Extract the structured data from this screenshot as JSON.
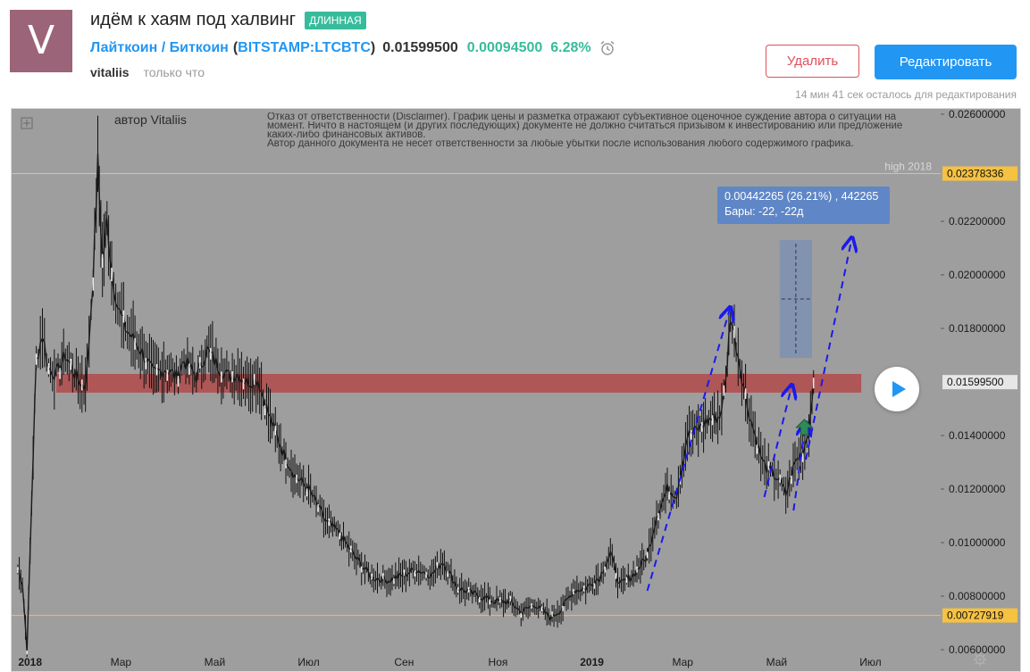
{
  "header": {
    "avatar_letter": "V",
    "title": "идём к хаям под халвинг",
    "badge": "ДЛИННАЯ",
    "symbol_name": "Лайткоин / Биткоин",
    "symbol_paren_open": "(",
    "symbol_ticker": "BITSTAMP:LTCBTC",
    "symbol_paren_close": ")",
    "price": "0.01599500",
    "change": "0.00094500",
    "change_pct": "6.28%",
    "author": "vitaliis",
    "time_ago": "только что",
    "delete_label": "Удалить",
    "edit_label": "Редактировать",
    "edit_note": "14 мин 41 сек осталось для редактирования"
  },
  "colors": {
    "badge": "#37bc9b",
    "link": "#2196f3",
    "positive": "#37bc9b",
    "delete": "#e0505a",
    "chart_bg": "#9e9e9e",
    "resistance_zone": "#b24a4a",
    "level_line": "#f5c242",
    "arrows": "#1a1aee",
    "measure": "#5f86c6",
    "long_arrow": "#2e8b57"
  },
  "chart": {
    "author_label": "автор Vitaliis",
    "disclaimer": [
      "Отказ от ответственности (Disclaimer). График цены и разметка отражают субъективное оценочное суждение автора о ситуации на ",
      "момент. Ничто в настоящем (и других последующих) документе не должно считаться призывом к инвестированию или предложение",
      "каких-либо финансовых активов.",
      "Автор данного документа не несет ответственности за любые убытки после использования любого содержимого графика."
    ],
    "high_label": "high 2018",
    "measure_line1": "0.00442265 (26.21%) , 442265",
    "measure_line2": "Бары: -22, -22д",
    "play_icon": "play-icon",
    "settings_icon": "gear-icon"
  },
  "chart_data": {
    "type": "candlestick",
    "symbol": "BITSTAMP:LTCBTC",
    "x_tick_labels": [
      "2018",
      "Мар",
      "Май",
      "Июл",
      "Сен",
      "Ноя",
      "2019",
      "Мар",
      "Май",
      "Июл"
    ],
    "y_tick_labels": [
      "0.02600000",
      "0.02200000",
      "0.02000000",
      "0.01800000",
      "0.01400000",
      "0.01200000",
      "0.01000000",
      "0.00800000",
      "0.00600000"
    ],
    "ylim": [
      0.0052,
      0.0262
    ],
    "highlighted_levels": [
      {
        "label": "0.02378336",
        "value": 0.02378336
      },
      {
        "label": "0.01599500",
        "value": 0.015995
      },
      {
        "label": "0.00727919",
        "value": 0.00727919
      }
    ],
    "resistance_zone": [
      0.0156,
      0.0163
    ],
    "price_path": [
      [
        "2017-12-24",
        0.009
      ],
      [
        "2017-12-27",
        0.0085
      ],
      [
        "2017-12-30",
        0.006
      ],
      [
        "2018-01-02",
        0.0115
      ],
      [
        "2018-01-05",
        0.0168
      ],
      [
        "2018-01-09",
        0.0178
      ],
      [
        "2018-01-13",
        0.0165
      ],
      [
        "2018-01-18",
        0.0163
      ],
      [
        "2018-01-24",
        0.017
      ],
      [
        "2018-01-31",
        0.0162
      ],
      [
        "2018-02-05",
        0.0158
      ],
      [
        "2018-02-07",
        0.0164
      ],
      [
        "2018-02-11",
        0.02
      ],
      [
        "2018-02-14",
        0.0242
      ],
      [
        "2018-02-17",
        0.0205
      ],
      [
        "2018-02-20",
        0.022
      ],
      [
        "2018-02-23",
        0.0201
      ],
      [
        "2018-02-27",
        0.0188
      ],
      [
        "2018-03-04",
        0.018
      ],
      [
        "2018-03-09",
        0.0176
      ],
      [
        "2018-03-16",
        0.017
      ],
      [
        "2018-03-22",
        0.0163
      ],
      [
        "2018-03-30",
        0.0165
      ],
      [
        "2018-04-06",
        0.0162
      ],
      [
        "2018-04-11",
        0.0168
      ],
      [
        "2018-04-19",
        0.0162
      ],
      [
        "2018-04-26",
        0.0172
      ],
      [
        "2018-05-03",
        0.0166
      ],
      [
        "2018-05-10",
        0.0162
      ],
      [
        "2018-05-16",
        0.0163
      ],
      [
        "2018-05-22",
        0.016
      ],
      [
        "2018-05-29",
        0.0161
      ],
      [
        "2018-06-06",
        0.0146
      ],
      [
        "2018-06-15",
        0.0133
      ],
      [
        "2018-06-22",
        0.0125
      ],
      [
        "2018-07-01",
        0.012
      ],
      [
        "2018-07-12",
        0.0108
      ],
      [
        "2018-07-20",
        0.0104
      ],
      [
        "2018-08-01",
        0.0094
      ],
      [
        "2018-08-11",
        0.0087
      ],
      [
        "2018-08-22",
        0.0086
      ],
      [
        "2018-09-01",
        0.0088
      ],
      [
        "2018-09-08",
        0.009
      ],
      [
        "2018-09-19",
        0.0088
      ],
      [
        "2018-09-26",
        0.0093
      ],
      [
        "2018-10-06",
        0.0083
      ],
      [
        "2018-10-20",
        0.008
      ],
      [
        "2018-10-30",
        0.0078
      ],
      [
        "2018-11-09",
        0.0078
      ],
      [
        "2018-11-16",
        0.0074
      ],
      [
        "2018-11-25",
        0.0077
      ],
      [
        "2018-12-05",
        0.0072
      ],
      [
        "2018-12-12",
        0.0075
      ],
      [
        "2018-12-20",
        0.0082
      ],
      [
        "2018-12-28",
        0.0083
      ],
      [
        "2019-01-06",
        0.0087
      ],
      [
        "2019-01-13",
        0.0096
      ],
      [
        "2019-01-19",
        0.0084
      ],
      [
        "2019-01-28",
        0.0088
      ],
      [
        "2019-02-06",
        0.0095
      ],
      [
        "2019-02-12",
        0.011
      ],
      [
        "2019-02-19",
        0.012
      ],
      [
        "2019-02-25",
        0.0118
      ],
      [
        "2019-03-04",
        0.014
      ],
      [
        "2019-03-10",
        0.0142
      ],
      [
        "2019-03-18",
        0.0146
      ],
      [
        "2019-03-25",
        0.0147
      ],
      [
        "2019-03-29",
        0.016
      ],
      [
        "2019-04-01",
        0.0185
      ],
      [
        "2019-04-06",
        0.017
      ],
      [
        "2019-04-12",
        0.0151
      ],
      [
        "2019-04-17",
        0.014
      ],
      [
        "2019-04-22",
        0.013
      ],
      [
        "2019-04-27",
        0.0126
      ],
      [
        "2019-05-02",
        0.0124
      ],
      [
        "2019-05-07",
        0.0118
      ],
      [
        "2019-05-13",
        0.013
      ],
      [
        "2019-05-18",
        0.0134
      ],
      [
        "2019-05-22",
        0.0142
      ],
      [
        "2019-05-25",
        0.016
      ]
    ],
    "projection_arrows": [
      [
        [
          "2019-02-06",
          0.0082
        ],
        [
          "2019-04-01",
          0.0188
        ]
      ],
      [
        [
          "2019-04-23",
          0.0117
        ],
        [
          "2019-05-11",
          0.0159
        ]
      ],
      [
        [
          "2019-05-12",
          0.0112
        ],
        [
          "2019-05-20",
          0.0145
        ]
      ],
      [
        [
          "2019-05-20",
          0.0131
        ],
        [
          "2019-06-19",
          0.0214
        ]
      ]
    ],
    "long_arrow": [
      "2019-05-19",
      0.0143
    ],
    "measure_range": {
      "from": 0.0169,
      "to": 0.0213,
      "date_from": "2019-05-03",
      "date_to": "2019-05-24"
    },
    "x_range": [
      "2017-12-20",
      "2019-08-15"
    ]
  }
}
